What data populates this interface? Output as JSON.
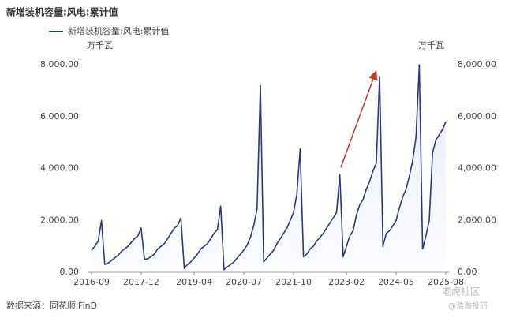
{
  "chart_data": {
    "type": "line",
    "title": "新增装机容量:风电:累计值",
    "y_unit": "万千瓦",
    "y2_unit": "万千瓦",
    "source": "数据来源：同花顺iFinD",
    "watermarks": [
      "老虎社区",
      "@浩淘投研"
    ],
    "categories": [
      "2016-09",
      null,
      null,
      null,
      null,
      null,
      null,
      null,
      null,
      null,
      null,
      null,
      null,
      null,
      null,
      "2017-12",
      null,
      null,
      null,
      null,
      null,
      null,
      null,
      null,
      null,
      null,
      null,
      null,
      null,
      null,
      null,
      "2019-04",
      null,
      null,
      null,
      null,
      null,
      null,
      null,
      null,
      null,
      null,
      null,
      null,
      null,
      null,
      "2020-07",
      null,
      null,
      null,
      null,
      null,
      null,
      null,
      null,
      null,
      null,
      null,
      null,
      null,
      null,
      "2021-10",
      null,
      null,
      null,
      null,
      null,
      null,
      null,
      null,
      null,
      null,
      null,
      null,
      null,
      null,
      null,
      "2023-02",
      null,
      null,
      null,
      null,
      null,
      null,
      null,
      null,
      null,
      null,
      null,
      null,
      null,
      null,
      "2024-05",
      null,
      null,
      null,
      null,
      null,
      null,
      null,
      null,
      null,
      null,
      null,
      null,
      null,
      null,
      "2025-08"
    ],
    "series": [
      {
        "name": "新增装机容量:风电:累计值",
        "color": "#2b3a7a",
        "values": [
          850,
          1000,
          1200,
          2000,
          300,
          350,
          450,
          550,
          650,
          800,
          900,
          1000,
          1150,
          1300,
          1400,
          1700,
          500,
          520,
          600,
          700,
          900,
          1000,
          1100,
          1300,
          1500,
          1700,
          1800,
          2100,
          150,
          300,
          400,
          550,
          700,
          900,
          1000,
          1100,
          1300,
          1500,
          1650,
          2550,
          100,
          200,
          300,
          400,
          550,
          700,
          850,
          1050,
          1350,
          1800,
          2450,
          7200,
          400,
          550,
          700,
          850,
          1100,
          1300,
          1500,
          1700,
          2000,
          2300,
          3000,
          4750,
          600,
          700,
          900,
          1000,
          1200,
          1350,
          1500,
          1700,
          1900,
          2100,
          2300,
          3750,
          600,
          1000,
          1400,
          1600,
          2200,
          2600,
          2800,
          3200,
          3500,
          3900,
          4200,
          7550,
          1000,
          1500,
          1600,
          1800,
          2000,
          2500,
          2900,
          3200,
          3700,
          4300,
          5200,
          8000,
          900,
          1400,
          2000,
          4600,
          5100,
          5300,
          5500,
          5800
        ]
      }
    ],
    "ylim": [
      0,
      8000
    ],
    "yticks": [
      {
        "value": 0,
        "label": "0.00"
      },
      {
        "value": 2000,
        "label": "2,000.00"
      },
      {
        "value": 4000,
        "label": "4,000.00"
      },
      {
        "value": 6000,
        "label": "6,000.00"
      },
      {
        "value": 8000,
        "label": "8,000.00"
      }
    ],
    "y2lim": [
      0,
      8000
    ],
    "y2ticks": [
      {
        "value": 0,
        "label": "0.00"
      },
      {
        "value": 2000,
        "label": "2,000.00"
      },
      {
        "value": 4000,
        "label": "4,000.00"
      },
      {
        "value": 6000,
        "label": "6,000.00"
      },
      {
        "value": 8000,
        "label": "8,000.00"
      }
    ],
    "grid": false
  }
}
